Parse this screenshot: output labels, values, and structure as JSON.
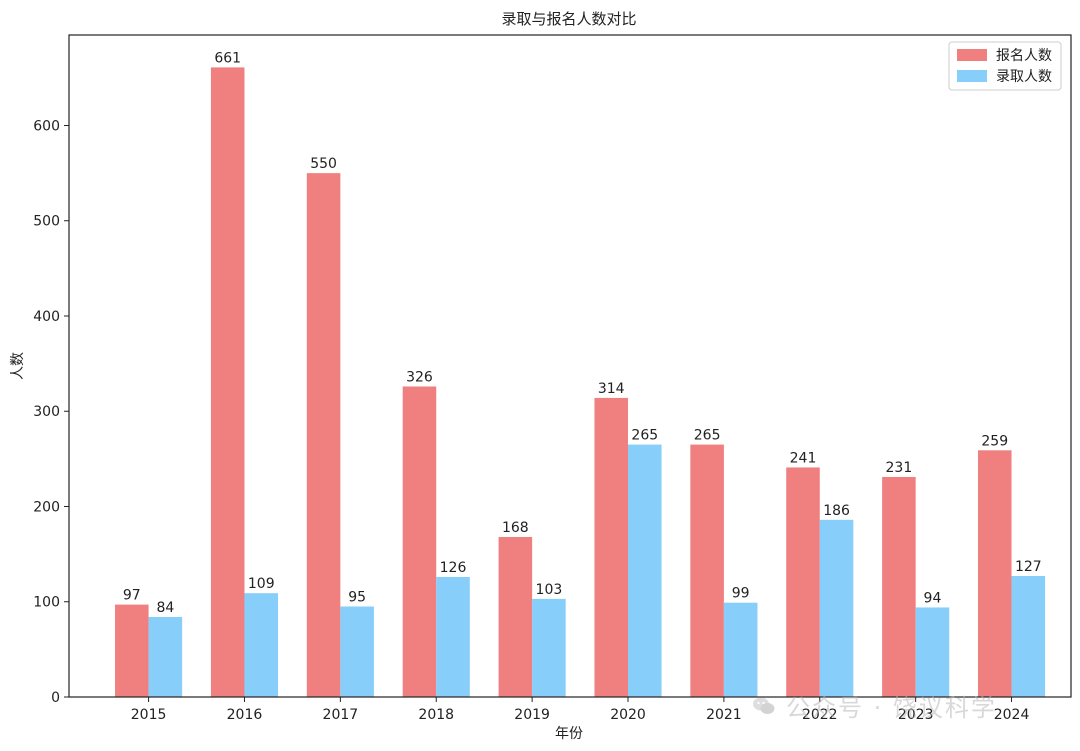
{
  "chart_data": {
    "type": "bar",
    "title": "录取与报名人数对比",
    "xlabel": "年份",
    "ylabel": "人数",
    "categories": [
      "2015",
      "2016",
      "2017",
      "2018",
      "2019",
      "2020",
      "2021",
      "2022",
      "2023",
      "2024"
    ],
    "series": [
      {
        "name": "报名人数",
        "color": "#f08080",
        "values": [
          97,
          661,
          550,
          326,
          168,
          314,
          265,
          241,
          231,
          259
        ]
      },
      {
        "name": "录取人数",
        "color": "#87cefa",
        "values": [
          84,
          109,
          95,
          126,
          103,
          265,
          99,
          186,
          94,
          127
        ]
      }
    ],
    "ylim": [
      0,
      695
    ],
    "yticks": [
      0,
      100,
      200,
      300,
      400,
      500,
      600
    ],
    "grid": false,
    "legend_position": "top-right",
    "data_labels": true
  },
  "watermark": {
    "icon": "wechat-icon",
    "text": "公众号 · 饶议科学"
  }
}
